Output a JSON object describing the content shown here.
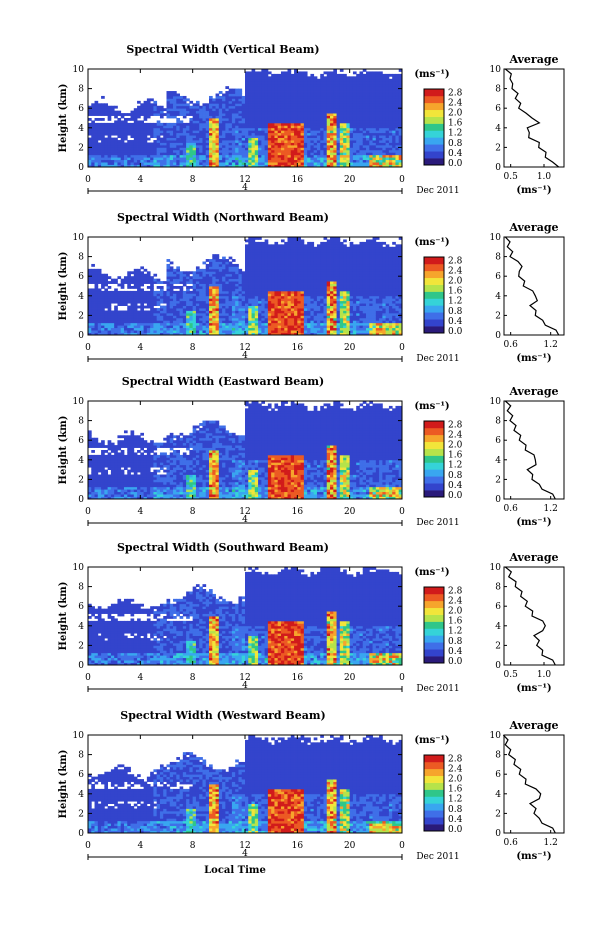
{
  "colorbar": {
    "unit_label": "(ms⁻¹)",
    "ticks": [
      "0.0",
      "0.4",
      "0.8",
      "1.2",
      "1.6",
      "2.0",
      "2.4",
      "2.8"
    ],
    "range": [
      0.0,
      2.8
    ],
    "colors": [
      "#2a1a7a",
      "#3344cc",
      "#3f6fe8",
      "#39a6f0",
      "#35d3d8",
      "#2fc68a",
      "#b6e34a",
      "#f2e53a",
      "#f6a52c",
      "#ec5a23",
      "#d11b1b"
    ]
  },
  "chart_data": [
    {
      "type": "heatmap",
      "title": "Spectral Width (Vertical Beam)",
      "xlabel": "",
      "ylabel": "Height (km)",
      "x_ticks": [
        "0",
        "4",
        "8",
        "12",
        "16",
        "20",
        "0"
      ],
      "y_ticks": [
        "0",
        "2",
        "4",
        "6",
        "8",
        "10"
      ],
      "xlim_hours": [
        0,
        24
      ],
      "ylim_km": [
        0,
        10
      ],
      "date_label": "Dec 2011",
      "day_marker": "4",
      "colorbar_label": "(ms⁻¹)",
      "profile": {
        "type": "line",
        "title": "Average",
        "xlabel": "(ms⁻¹)",
        "x_ticks": [
          "0.5",
          "1.0"
        ],
        "xlim": [
          0.4,
          1.3
        ],
        "y_ticks": [
          "0",
          "2",
          "4",
          "6",
          "8",
          "10"
        ],
        "height_km": [
          0,
          0.5,
          1,
          1.5,
          2,
          2.5,
          3,
          3.5,
          4,
          4.5,
          5,
          5.5,
          6,
          6.5,
          7,
          7.5,
          8,
          8.5,
          9,
          9.5,
          10
        ],
        "values": [
          1.25,
          1.1,
          1.05,
          1.0,
          0.95,
          0.9,
          0.8,
          0.75,
          0.78,
          0.9,
          0.85,
          0.7,
          0.65,
          0.62,
          0.6,
          0.58,
          0.55,
          0.5,
          0.52,
          0.48,
          0.45
        ]
      }
    },
    {
      "type": "heatmap",
      "title": "Spectral Width (Northward Beam)",
      "xlabel": "",
      "ylabel": "Height (km)",
      "x_ticks": [
        "0",
        "4",
        "8",
        "12",
        "16",
        "20",
        "0"
      ],
      "y_ticks": [
        "0",
        "2",
        "4",
        "6",
        "8",
        "10"
      ],
      "xlim_hours": [
        0,
        24
      ],
      "ylim_km": [
        0,
        10
      ],
      "date_label": "Dec 2011",
      "day_marker": "4",
      "colorbar_label": "(ms⁻¹)",
      "profile": {
        "type": "line",
        "title": "Average",
        "xlabel": "(ms⁻¹)",
        "x_ticks": [
          "0.6",
          "1.2"
        ],
        "xlim": [
          0.5,
          1.4
        ],
        "y_ticks": [
          "0",
          "2",
          "4",
          "6",
          "8",
          "10"
        ],
        "height_km": [
          0,
          0.5,
          1,
          1.5,
          2,
          2.5,
          3,
          3.5,
          4,
          4.5,
          5,
          5.5,
          6,
          6.5,
          7,
          7.5,
          8,
          8.5,
          9,
          9.5,
          10
        ],
        "values": [
          1.35,
          1.25,
          1.15,
          1.05,
          1.0,
          0.95,
          0.92,
          0.97,
          1.0,
          0.9,
          0.82,
          0.78,
          0.75,
          0.7,
          0.8,
          0.68,
          0.62,
          0.6,
          0.58,
          0.56,
          0.55
        ]
      }
    },
    {
      "type": "heatmap",
      "title": "Spectral Width (Eastward Beam)",
      "xlabel": "",
      "ylabel": "Height (km)",
      "x_ticks": [
        "0",
        "4",
        "8",
        "12",
        "16",
        "20",
        "0"
      ],
      "y_ticks": [
        "0",
        "2",
        "4",
        "6",
        "8",
        "10"
      ],
      "xlim_hours": [
        0,
        24
      ],
      "ylim_km": [
        0,
        10
      ],
      "date_label": "Dec 2011",
      "day_marker": "4",
      "colorbar_label": "(ms⁻¹)",
      "profile": {
        "type": "line",
        "title": "Average",
        "xlabel": "(ms⁻¹)",
        "x_ticks": [
          "0.6",
          "1.2"
        ],
        "xlim": [
          0.5,
          1.4
        ],
        "y_ticks": [
          "0",
          "2",
          "4",
          "6",
          "8",
          "10"
        ],
        "height_km": [
          0,
          0.5,
          1,
          1.5,
          2,
          2.5,
          3,
          3.5,
          4,
          4.5,
          5,
          5.5,
          6,
          6.5,
          7,
          7.5,
          8,
          8.5,
          9,
          9.5,
          10
        ],
        "values": [
          1.3,
          1.2,
          1.1,
          1.0,
          0.95,
          0.9,
          0.88,
          0.95,
          1.0,
          0.92,
          0.85,
          0.8,
          0.76,
          0.72,
          0.68,
          0.65,
          0.62,
          0.6,
          0.58,
          0.57,
          0.55
        ]
      }
    },
    {
      "type": "heatmap",
      "title": "Spectral Width (Southward Beam)",
      "xlabel": "",
      "ylabel": "Height (km)",
      "x_ticks": [
        "0",
        "4",
        "8",
        "12",
        "16",
        "20",
        "0"
      ],
      "y_ticks": [
        "0",
        "2",
        "4",
        "6",
        "8",
        "10"
      ],
      "xlim_hours": [
        0,
        24
      ],
      "ylim_km": [
        0,
        10
      ],
      "date_label": "Dec 2011",
      "day_marker": "4",
      "colorbar_label": "(ms⁻¹)",
      "profile": {
        "type": "line",
        "title": "Average",
        "xlabel": "(ms⁻¹)",
        "x_ticks": [
          "0.5",
          "1.0"
        ],
        "xlim": [
          0.4,
          1.3
        ],
        "y_ticks": [
          "0",
          "2",
          "4",
          "6",
          "8",
          "10"
        ],
        "height_km": [
          0,
          0.5,
          1,
          1.5,
          2,
          2.5,
          3,
          3.5,
          4,
          4.5,
          5,
          5.5,
          6,
          6.5,
          7,
          7.5,
          8,
          8.5,
          9,
          9.5,
          10
        ],
        "values": [
          1.2,
          1.1,
          1.0,
          0.95,
          0.92,
          0.9,
          0.88,
          0.95,
          1.05,
          0.95,
          0.85,
          0.8,
          0.75,
          0.72,
          0.68,
          0.64,
          0.6,
          0.55,
          0.5,
          0.48,
          0.45
        ]
      }
    },
    {
      "type": "heatmap",
      "title": "Spectral Width (Westward Beam)",
      "xlabel": "Local Time",
      "ylabel": "Height (km)",
      "x_ticks": [
        "0",
        "4",
        "8",
        "12",
        "16",
        "20",
        "0"
      ],
      "y_ticks": [
        "0",
        "2",
        "4",
        "6",
        "8",
        "10"
      ],
      "xlim_hours": [
        0,
        24
      ],
      "ylim_km": [
        0,
        10
      ],
      "date_label": "Dec 2011",
      "day_marker": "4",
      "colorbar_label": "(ms⁻¹)",
      "profile": {
        "type": "line",
        "title": "Average",
        "xlabel": "(ms⁻¹)",
        "x_ticks": [
          "0.6",
          "1.2"
        ],
        "xlim": [
          0.5,
          1.4
        ],
        "y_ticks": [
          "0",
          "2",
          "4",
          "6",
          "8",
          "10"
        ],
        "height_km": [
          0,
          0.5,
          1,
          1.5,
          2,
          2.5,
          3,
          3.5,
          4,
          4.5,
          5,
          5.5,
          6,
          6.5,
          7,
          7.5,
          8,
          8.5,
          9,
          9.5,
          10
        ],
        "values": [
          1.3,
          1.2,
          1.1,
          1.0,
          0.98,
          0.95,
          0.92,
          1.0,
          1.08,
          0.95,
          0.85,
          0.8,
          0.76,
          0.72,
          0.68,
          0.64,
          0.6,
          0.57,
          0.55,
          0.53,
          0.52
        ]
      }
    }
  ]
}
